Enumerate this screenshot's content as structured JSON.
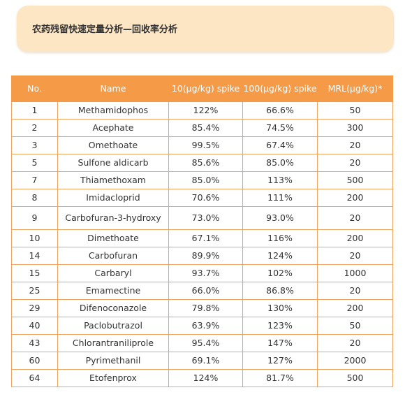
{
  "title": "农药残留快速定量分析—回收率分析",
  "table": {
    "headers": {
      "no": "No.",
      "name": "Name",
      "spike10": "10(μg/kg) spike",
      "spike100": "100(μg/kg) spike",
      "mrl": "MRL(μg/kg)*"
    },
    "rows": [
      {
        "no": "1",
        "name": "Methamidophos",
        "spike10": "122%",
        "spike100": "66.6%",
        "mrl": "50"
      },
      {
        "no": "2",
        "name": "Acephate",
        "spike10": "85.4%",
        "spike100": "74.5%",
        "mrl": "300"
      },
      {
        "no": "3",
        "name": "Omethoate",
        "spike10": "99.5%",
        "spike100": "67.4%",
        "mrl": "20"
      },
      {
        "no": "5",
        "name": "Sulfone aldicarb",
        "spike10": "85.6%",
        "spike100": "85.0%",
        "mrl": "20"
      },
      {
        "no": "7",
        "name": "Thiamethoxam",
        "spike10": "85.0%",
        "spike100": "113%",
        "mrl": "500"
      },
      {
        "no": "8",
        "name": "Imidacloprid",
        "spike10": "70.6%",
        "spike100": "111%",
        "mrl": "200"
      },
      {
        "no": "9",
        "name": "Carbofuran-3-hydroxy",
        "spike10": "73.0%",
        "spike100": "93.0%",
        "mrl": "20"
      },
      {
        "no": "10",
        "name": "Dimethoate",
        "spike10": "67.1%",
        "spike100": "116%",
        "mrl": "200"
      },
      {
        "no": "14",
        "name": "Carbofuran",
        "spike10": "89.9%",
        "spike100": "124%",
        "mrl": "20"
      },
      {
        "no": "15",
        "name": "Carbaryl",
        "spike10": "93.7%",
        "spike100": "102%",
        "mrl": "1000"
      },
      {
        "no": "25",
        "name": "Emamectine",
        "spike10": "66.0%",
        "spike100": "86.8%",
        "mrl": "20"
      },
      {
        "no": "29",
        "name": "Difenoconazole",
        "spike10": "79.8%",
        "spike100": "130%",
        "mrl": "200"
      },
      {
        "no": "40",
        "name": "Paclobutrazol",
        "spike10": "63.9%",
        "spike100": "123%",
        "mrl": "50"
      },
      {
        "no": "43",
        "name": "Chlorantraniliprole",
        "spike10": "95.4%",
        "spike100": "147%",
        "mrl": "20"
      },
      {
        "no": "60",
        "name": "Pyrimethanil",
        "spike10": "69.1%",
        "spike100": "127%",
        "mrl": "2000"
      },
      {
        "no": "64",
        "name": "Etofenprox",
        "spike10": "124%",
        "spike100": "81.7%",
        "mrl": "500"
      }
    ]
  }
}
